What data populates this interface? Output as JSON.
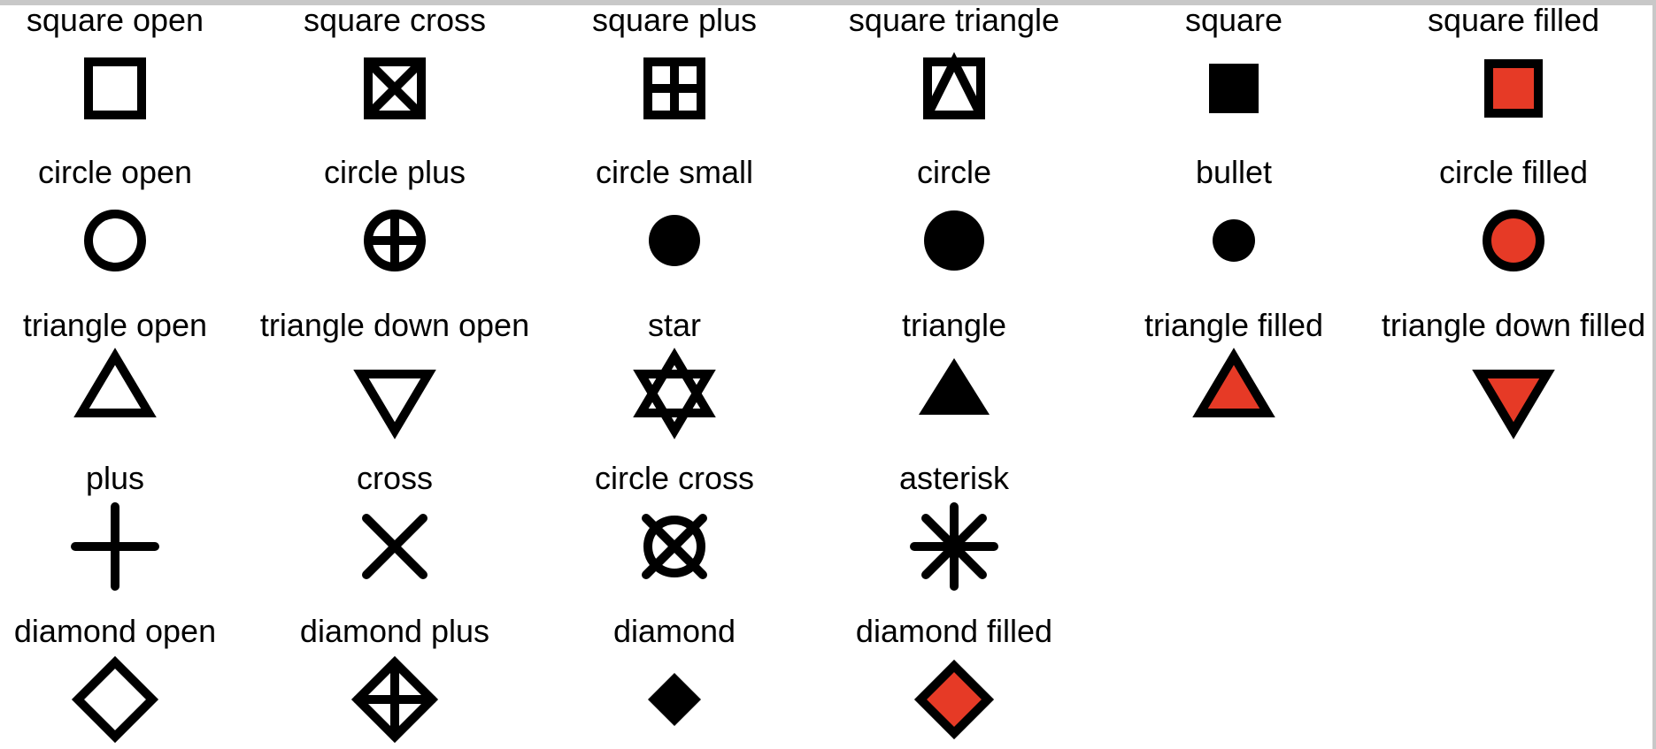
{
  "colors": {
    "stroke": "#000000",
    "fill_red": "#e63a26"
  },
  "shapes": [
    [
      {
        "label": "square open",
        "shape": "square-open"
      },
      {
        "label": "square cross",
        "shape": "square-cross"
      },
      {
        "label": "square plus",
        "shape": "square-plus"
      },
      {
        "label": "square triangle",
        "shape": "square-triangle"
      },
      {
        "label": "square",
        "shape": "square"
      },
      {
        "label": "square filled",
        "shape": "square-filled"
      }
    ],
    [
      {
        "label": "circle open",
        "shape": "circle-open"
      },
      {
        "label": "circle plus",
        "shape": "circle-plus"
      },
      {
        "label": "circle small",
        "shape": "circle-small"
      },
      {
        "label": "circle",
        "shape": "circle"
      },
      {
        "label": "bullet",
        "shape": "bullet"
      },
      {
        "label": "circle filled",
        "shape": "circle-filled"
      }
    ],
    [
      {
        "label": "triangle open",
        "shape": "triangle-open"
      },
      {
        "label": "triangle down open",
        "shape": "triangle-down-open"
      },
      {
        "label": "star",
        "shape": "star"
      },
      {
        "label": "triangle",
        "shape": "triangle"
      },
      {
        "label": "triangle filled",
        "shape": "triangle-filled"
      },
      {
        "label": "triangle down filled",
        "shape": "triangle-down-filled"
      }
    ],
    [
      {
        "label": "plus",
        "shape": "plus"
      },
      {
        "label": "cross",
        "shape": "cross"
      },
      {
        "label": "circle cross",
        "shape": "circle-cross"
      },
      {
        "label": "asterisk",
        "shape": "asterisk"
      }
    ],
    [
      {
        "label": "diamond open",
        "shape": "diamond-open"
      },
      {
        "label": "diamond plus",
        "shape": "diamond-plus"
      },
      {
        "label": "diamond",
        "shape": "diamond"
      },
      {
        "label": "diamond filled",
        "shape": "diamond-filled"
      }
    ]
  ]
}
